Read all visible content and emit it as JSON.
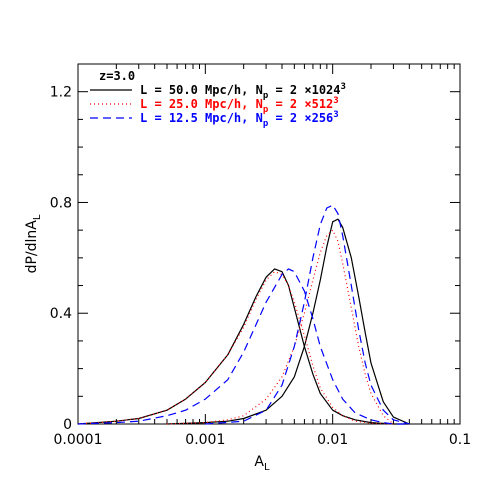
{
  "chart_data": {
    "type": "line",
    "x_scale": "log",
    "xlim": [
      0.0001,
      0.1
    ],
    "ylim": [
      0,
      1.3
    ],
    "xlabel_main": "A",
    "xlabel_sub": "L",
    "ylabel_main": "dP/dlnA",
    "ylabel_sub": "L",
    "annotation": "z=3.0",
    "x_tick_labels": [
      "0.0001",
      "0.001",
      "0.01",
      "0.1"
    ],
    "y_tick_labels": [
      "0",
      "0.4",
      "0.8",
      "1.2"
    ],
    "legend": [
      {
        "prefix": "L = 50.0 Mpc/h, N",
        "sub": "p",
        "mid": " = 2 ×1024",
        "sup": "3",
        "color": "#000000",
        "dash": ""
      },
      {
        "prefix": "L = 25.0 Mpc/h, N",
        "sub": "p",
        "mid": " = 2 ×512",
        "sup": "3",
        "color": "#ff0000",
        "dash": "1,3"
      },
      {
        "prefix": "L = 12.5 Mpc/h, N",
        "sub": "p",
        "mid": " = 2 ×256",
        "sup": "3",
        "color": "#0000ff",
        "dash": "8,5"
      }
    ],
    "series": [
      {
        "color": "#000000",
        "dash": "",
        "width": 1.2,
        "x": [
          0.0001,
          0.0002,
          0.0003,
          0.0005,
          0.0007,
          0.001,
          0.0015,
          0.002,
          0.0025,
          0.003,
          0.0035,
          0.004,
          0.0045,
          0.005,
          0.006,
          0.007,
          0.008,
          0.01,
          0.012,
          0.015,
          0.02,
          0.025,
          0.03,
          0.04
        ],
        "y": [
          0.0,
          0.01,
          0.02,
          0.05,
          0.09,
          0.15,
          0.25,
          0.36,
          0.46,
          0.53,
          0.56,
          0.55,
          0.5,
          0.42,
          0.28,
          0.18,
          0.11,
          0.05,
          0.03,
          0.015,
          0.005,
          0.002,
          0.0,
          0.0
        ]
      },
      {
        "color": "#000000",
        "dash": "",
        "width": 1.2,
        "x": [
          0.0005,
          0.001,
          0.0015,
          0.002,
          0.003,
          0.004,
          0.005,
          0.006,
          0.007,
          0.008,
          0.009,
          0.01,
          0.011,
          0.012,
          0.014,
          0.016,
          0.018,
          0.02,
          0.025,
          0.03,
          0.04
        ],
        "y": [
          0.0,
          0.005,
          0.01,
          0.02,
          0.05,
          0.1,
          0.17,
          0.28,
          0.4,
          0.52,
          0.64,
          0.73,
          0.74,
          0.71,
          0.6,
          0.46,
          0.33,
          0.22,
          0.08,
          0.025,
          0.0
        ]
      },
      {
        "color": "#ff0000",
        "dash": "1,3",
        "width": 1.2,
        "x": [
          0.0001,
          0.0002,
          0.0003,
          0.0005,
          0.0007,
          0.001,
          0.0015,
          0.002,
          0.0025,
          0.003,
          0.0035,
          0.004,
          0.0045,
          0.005,
          0.006,
          0.007,
          0.008,
          0.01,
          0.012,
          0.015,
          0.02,
          0.03
        ],
        "y": [
          0.0,
          0.01,
          0.02,
          0.05,
          0.09,
          0.15,
          0.25,
          0.35,
          0.45,
          0.52,
          0.55,
          0.54,
          0.5,
          0.44,
          0.32,
          0.21,
          0.13,
          0.06,
          0.03,
          0.01,
          0.003,
          0.0
        ]
      },
      {
        "color": "#ff0000",
        "dash": "1,3",
        "width": 1.2,
        "x": [
          0.0005,
          0.001,
          0.0015,
          0.002,
          0.003,
          0.004,
          0.005,
          0.006,
          0.007,
          0.008,
          0.009,
          0.01,
          0.011,
          0.012,
          0.014,
          0.016,
          0.018,
          0.02,
          0.025,
          0.03
        ],
        "y": [
          0.0,
          0.005,
          0.015,
          0.03,
          0.09,
          0.17,
          0.28,
          0.4,
          0.52,
          0.62,
          0.68,
          0.7,
          0.66,
          0.58,
          0.42,
          0.28,
          0.18,
          0.11,
          0.03,
          0.0
        ]
      },
      {
        "color": "#0000ff",
        "dash": "8,5",
        "width": 1.2,
        "x": [
          0.0001,
          0.0002,
          0.0003,
          0.0005,
          0.0007,
          0.001,
          0.0015,
          0.002,
          0.003,
          0.004,
          0.0045,
          0.005,
          0.006,
          0.007,
          0.008,
          0.01,
          0.012,
          0.015,
          0.02,
          0.025,
          0.03,
          0.04
        ],
        "y": [
          0.0,
          0.005,
          0.01,
          0.03,
          0.05,
          0.09,
          0.16,
          0.26,
          0.44,
          0.54,
          0.56,
          0.55,
          0.48,
          0.38,
          0.28,
          0.16,
          0.09,
          0.04,
          0.015,
          0.005,
          0.0,
          0.0
        ]
      },
      {
        "color": "#0000ff",
        "dash": "8,5",
        "width": 1.2,
        "x": [
          0.001,
          0.002,
          0.003,
          0.004,
          0.005,
          0.006,
          0.007,
          0.008,
          0.009,
          0.01,
          0.011,
          0.012,
          0.014,
          0.016,
          0.018,
          0.02,
          0.025,
          0.03,
          0.04
        ],
        "y": [
          0.0,
          0.01,
          0.05,
          0.14,
          0.28,
          0.44,
          0.6,
          0.72,
          0.78,
          0.79,
          0.76,
          0.68,
          0.5,
          0.34,
          0.22,
          0.14,
          0.05,
          0.015,
          0.0
        ]
      }
    ]
  }
}
